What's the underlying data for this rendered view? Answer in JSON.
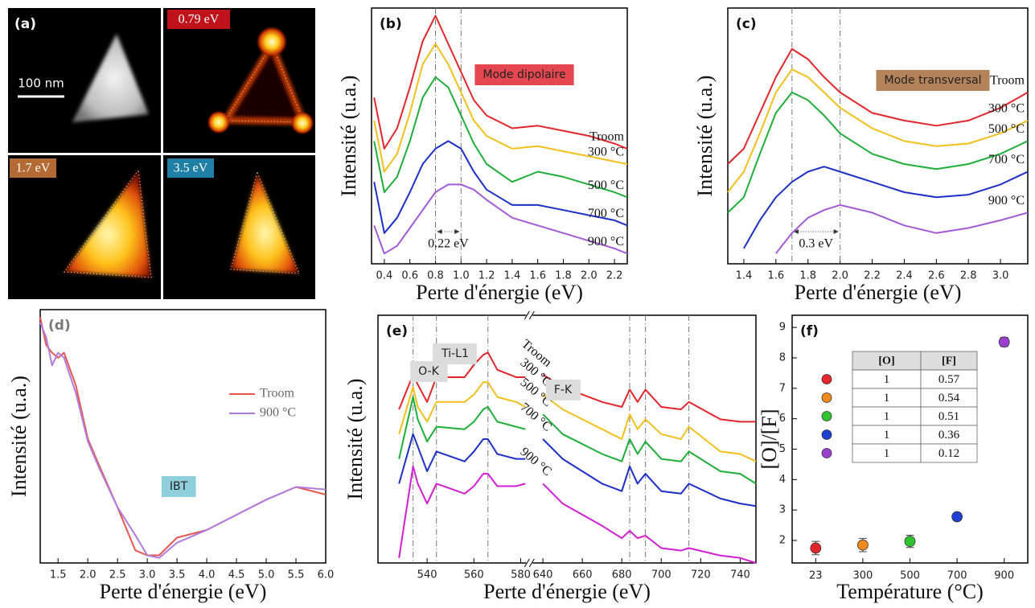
{
  "panel_a": {
    "label": "(a)",
    "scale_bar": "100 nm",
    "maps": [
      "0.79 eV",
      "1.7 eV",
      "3.5 eV"
    ]
  },
  "chart_data": [
    {
      "type": "line",
      "panel": "(b)",
      "badge": "Mode dipolaire",
      "badge_color": "#e4474f",
      "xlabel": "Perte d'énergie (eV)",
      "ylabel": "Intensité (u.a.)",
      "legend": "end",
      "xlim": [
        0.3,
        2.3
      ],
      "ylim": [
        0,
        100
      ],
      "xticks": [
        0.4,
        0.6,
        0.8,
        {
          "value": 1,
          "label": "1.0"
        },
        1.2,
        1.4,
        1.6,
        1.8,
        {
          "value": 2,
          "label": "2.0"
        },
        2.2
      ],
      "vlines": [
        0.8,
        1.0
      ],
      "span_label": "0.22 eV",
      "x": [
        0.32,
        0.4,
        0.5,
        0.6,
        0.7,
        0.8,
        0.9,
        1.0,
        1.1,
        1.2,
        1.4,
        1.6,
        1.8,
        2.0,
        2.2,
        2.3
      ],
      "series": [
        {
          "name": "Troom",
          "color": "#e3262b",
          "values": [
            65,
            45,
            53,
            69,
            87,
            97,
            86,
            75,
            64,
            58,
            53,
            54,
            52,
            50,
            47,
            45
          ]
        },
        {
          "name": "300 °C",
          "color": "#f2bf1d",
          "values": [
            56,
            36,
            43,
            59,
            78,
            86,
            78,
            67,
            56,
            50,
            45,
            46,
            44,
            42,
            40,
            39
          ]
        },
        {
          "name": "500 °C",
          "color": "#1fae3a",
          "values": [
            48,
            28,
            34,
            48,
            65,
            73,
            69,
            58,
            47,
            39,
            32,
            36,
            34,
            31,
            28,
            26
          ]
        },
        {
          "name": "700 °C",
          "color": "#1c2fc8",
          "values": [
            32,
            12,
            18,
            28,
            39,
            45,
            48,
            45,
            36,
            29,
            23,
            23,
            21,
            19,
            17,
            15
          ]
        },
        {
          "name": "900 °C",
          "color": "#a35ad8",
          "values": [
            15,
            4,
            7,
            14,
            21,
            28,
            31,
            31,
            29,
            25,
            18,
            15,
            12,
            9,
            6,
            4
          ]
        }
      ]
    },
    {
      "type": "line",
      "panel": "(c)",
      "badge": "Mode transversal",
      "badge_color": "#b5835a",
      "xlabel": "Perte d'énergie (eV)",
      "ylabel": "Intensité (u.a.)",
      "legend": "end",
      "xlim": [
        1.3,
        3.17
      ],
      "ylim": [
        0,
        100
      ],
      "xticks": [
        1.4,
        1.6,
        1.8,
        {
          "value": 2,
          "label": "2.0"
        },
        2.2,
        2.4,
        2.6,
        2.8,
        {
          "value": 3,
          "label": "3.0"
        }
      ],
      "vlines": [
        1.7,
        2.0
      ],
      "span_label": "0.3 eV",
      "x": [
        1.3,
        1.4,
        1.5,
        1.6,
        1.7,
        1.8,
        1.9,
        2.0,
        2.2,
        2.4,
        2.6,
        2.8,
        3.0,
        3.17
      ],
      "series": [
        {
          "name": "Troom",
          "color": "#e3262b",
          "values": [
            39,
            45,
            59,
            73,
            84,
            80,
            73,
            67,
            59,
            56,
            54,
            56,
            61,
            67
          ]
        },
        {
          "name": "300 °C",
          "color": "#f2bf1d",
          "values": [
            28,
            36,
            51,
            67,
            76,
            73,
            67,
            61,
            53,
            48,
            46,
            47,
            51,
            56
          ]
        },
        {
          "name": "500 °C",
          "color": "#1fae3a",
          "values": [
            20,
            26,
            43,
            59,
            67,
            64,
            58,
            51,
            43,
            39,
            37,
            39,
            43,
            48
          ]
        },
        {
          "name": "700 °C",
          "color": "#1c2fc8",
          "values": [
            null,
            6,
            17,
            26,
            32,
            36,
            38,
            36,
            32,
            28,
            26,
            27,
            31,
            36
          ]
        },
        {
          "name": "900 °C",
          "color": "#a35ad8",
          "values": [
            null,
            null,
            null,
            4,
            12,
            18,
            21,
            23,
            20,
            15,
            12,
            14,
            17,
            20
          ]
        }
      ]
    },
    {
      "type": "line",
      "panel": "(d)",
      "badge": "IBT",
      "badge_color": "#8fcfdc",
      "xlabel": "Perte d'énergie (eV)",
      "ylabel": "Intensité (u.a.)",
      "legend": "upper right",
      "xlim": [
        1.2,
        6.0
      ],
      "ylim": [
        0,
        100
      ],
      "xticks": [
        1.5,
        {
          "value": 2,
          "label": "2.0"
        },
        2.5,
        {
          "value": 3,
          "label": "3.0"
        },
        3.5,
        {
          "value": 4,
          "label": "4.0"
        },
        4.5,
        {
          "value": 5,
          "label": "5.0"
        },
        5.5,
        {
          "value": 6,
          "label": "6.0"
        }
      ],
      "x": [
        1.2,
        1.3,
        1.4,
        1.5,
        1.6,
        1.8,
        2.0,
        2.2,
        2.5,
        2.8,
        3.0,
        3.2,
        3.5,
        4.0,
        4.5,
        5.0,
        5.5,
        6.0
      ],
      "series": [
        {
          "name": "Troom",
          "color": "#e8574f",
          "values": [
            97,
            86,
            83,
            81,
            83,
            70,
            49,
            38,
            22,
            5,
            3,
            3,
            10,
            13,
            19,
            25,
            30,
            27
          ]
        },
        {
          "name": "900 °C",
          "color": "#b07be0",
          "values": [
            95,
            89,
            78,
            83,
            81,
            67,
            48,
            37,
            22,
            11,
            3,
            2,
            8,
            13,
            19,
            25,
            30,
            29
          ]
        }
      ]
    },
    {
      "type": "line",
      "panel": "(e)",
      "peak_labels": [
        "O-K",
        "Ti-L1",
        "F-K"
      ],
      "xlabel": "Perte d'énergie (eV)",
      "ylabel": "Intensité (u.a.)",
      "legend": "break",
      "xlim": [
        519,
        748
      ],
      "xbreak": [
        582,
        634
      ],
      "ylim": [
        0,
        100
      ],
      "xticks": [
        540,
        560,
        580,
        640,
        660,
        680,
        700,
        720,
        740
      ],
      "vlines": [
        534,
        544,
        566,
        684,
        692,
        714
      ],
      "x": [
        528,
        534,
        536,
        540,
        544,
        556,
        560,
        564,
        566,
        570,
        578,
        582,
        608,
        640,
        650,
        670,
        680,
        684,
        688,
        692,
        700,
        710,
        714,
        730,
        740,
        748
      ],
      "series": [
        {
          "name": "Troom",
          "color": "#e3262b",
          "values": [
            62,
            76,
            72,
            65,
            75,
            75,
            80,
            84,
            85,
            78,
            75,
            75,
            null,
            76,
            71,
            65,
            63,
            70,
            65,
            70,
            63,
            62,
            65,
            58,
            57,
            57
          ]
        },
        {
          "name": "300 °C",
          "color": "#f2bf1d",
          "values": [
            52,
            71,
            63,
            57,
            65,
            65,
            68,
            73,
            73,
            67,
            65,
            63,
            null,
            68,
            62,
            54,
            50,
            60,
            54,
            58,
            52,
            50,
            55,
            45,
            44,
            41
          ]
        },
        {
          "name": "500 °C",
          "color": "#1fae3a",
          "values": [
            42,
            67,
            58,
            49,
            55,
            54,
            57,
            62,
            63,
            57,
            55,
            54,
            null,
            60,
            52,
            44,
            41,
            50,
            44,
            49,
            42,
            41,
            45,
            37,
            36,
            32
          ]
        },
        {
          "name": "700 °C",
          "color": "#1c2fc8",
          "values": [
            32,
            52,
            47,
            37,
            45,
            41,
            45,
            50,
            50,
            44,
            42,
            42,
            null,
            50,
            42,
            32,
            29,
            39,
            32,
            36,
            29,
            28,
            32,
            26,
            24,
            23
          ]
        },
        {
          "name": "900 °C",
          "color": "#d21fd2",
          "values": [
            2,
            39,
            32,
            24,
            32,
            28,
            31,
            36,
            36,
            31,
            31,
            32,
            null,
            32,
            24,
            15,
            10,
            13,
            10,
            11,
            6,
            5,
            6,
            3,
            2,
            0
          ]
        }
      ]
    },
    {
      "type": "scatter",
      "panel": "(f)",
      "xlabel": "Température (°C)",
      "ylabel": "[O]/[F]",
      "categories": [
        "23",
        "300",
        "500",
        "700",
        "900"
      ],
      "values": [
        1.75,
        1.85,
        1.97,
        2.78,
        8.52
      ],
      "errors": [
        0.22,
        0.22,
        0.2,
        0.12,
        0.15
      ],
      "colors": [
        "#e3262b",
        "#f08a1e",
        "#2fc42f",
        "#1f3fd0",
        "#9a3fd0"
      ],
      "ylim": [
        1.26,
        9.4
      ],
      "yticks": [
        2,
        3,
        4,
        5,
        6,
        7,
        8,
        9
      ],
      "table": {
        "header": [
          "[O]",
          "[F]"
        ],
        "rows": [
          [
            1,
            0.57
          ],
          [
            1,
            0.54
          ],
          [
            1,
            0.51
          ],
          [
            1,
            0.36
          ],
          [
            1,
            0.12
          ]
        ]
      }
    }
  ]
}
